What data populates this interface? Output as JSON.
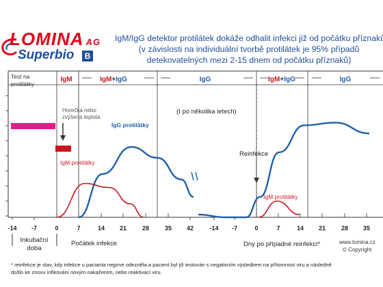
{
  "logo": {
    "name": "LOMINA",
    "suffix": "AG",
    "product": "Superbio",
    "mark": "B"
  },
  "headline": {
    "line1": "IgM/IgG detektor protilátek dokáže odhalit infekci již od počátku příznaků",
    "line2": "(v závislosti na individuální tvorbě protilátek je 95% případů",
    "line3": "detekovatelných mezi 2-15 dnem od počátku příznaků)"
  },
  "colors": {
    "igg": "#1f5fa8",
    "igm": "#c8161d",
    "phase_blue": "#1f5fa8",
    "phase_red": "#c8161d",
    "fever_bar": "#e6198a",
    "logo_red": "#e3001b",
    "logo_blue": "#1f4e9c",
    "axis": "#333333"
  },
  "chart_data": {
    "type": "line",
    "ylabel": "Test na protilátky",
    "x_axis_label_left": "Počátek infekce",
    "x_axis_label_right": "Dny po případné reinfekci*",
    "incubation_label": "Inkubační doba",
    "tick_labels": [
      "-14",
      "-7",
      "0",
      "7",
      "14",
      "21",
      "28",
      "35",
      "42",
      "-14",
      "-7",
      "0",
      "7",
      "14",
      "21",
      "28",
      "35"
    ],
    "phases": [
      {
        "label": "IgM",
        "color": "red"
      },
      {
        "label": "IgM+IgG",
        "color": "mixed"
      },
      {
        "label": "IgG",
        "color": "blue"
      },
      {
        "label": "IgM+IgG",
        "color": "mixed"
      },
      {
        "label": "IgG",
        "color": "blue"
      }
    ],
    "series": [
      {
        "name": "IgG protilátky",
        "color": "#1f5fa8",
        "points": [
          [
            7,
            0.0
          ],
          [
            14,
            0.32
          ],
          [
            21,
            0.52
          ],
          [
            28,
            0.44
          ],
          [
            35,
            0.28
          ],
          [
            42,
            0.15
          ],
          [
            -14,
            0.02
          ],
          [
            -7,
            0.0
          ],
          [
            0,
            0.0
          ],
          [
            7,
            0.15
          ],
          [
            14,
            0.48
          ],
          [
            21,
            0.68
          ],
          [
            28,
            0.7
          ],
          [
            35,
            0.62
          ]
        ]
      },
      {
        "name": "IgM protilátky",
        "color": "#c8161d",
        "points": [
          [
            0,
            0.0
          ],
          [
            7,
            0.25
          ],
          [
            14,
            0.22
          ],
          [
            21,
            0.1
          ],
          [
            28,
            0.0
          ]
        ]
      },
      {
        "name": "IgM protilátky",
        "color": "#c8161d",
        "points": [
          [
            0,
            0.0
          ],
          [
            7,
            0.12
          ],
          [
            14,
            0.02
          ]
        ]
      }
    ],
    "annotations": {
      "fever": "Horečka nebo zvýšená teplota",
      "years": "(I po několika letech)",
      "reinfection": "Reinfekce"
    }
  },
  "website": "www.lomina.cz",
  "copyright": "© Copyright",
  "footnote": {
    "line1": "* reinfekce je stav, kdy infekce u pacianta nejprve odezněla a pacient byl již testován s negativním výsledkem na přítomnost viru a následně",
    "line2": "došlo ke znovu infikování novým nakažením, nebo reaktivací viru."
  }
}
